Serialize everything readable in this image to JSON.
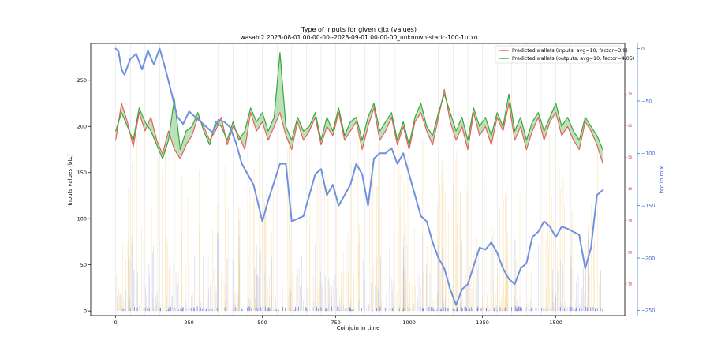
{
  "chart_data": {
    "type": "line",
    "title": "Type of inputs for given cjtx (values)",
    "subtitle": "wasabi2 2023-08-01 00-00-00--2023-09-01 00-00-00_unknown-static-100-1utxo",
    "xlabel": "Coinjoin in time",
    "ylabel": "Inputs values (btc)",
    "ylabel_right_outer": "btc in mix",
    "xlim": [
      -85,
      1735
    ],
    "ylim": [
      -5,
      290
    ],
    "x_ticks": [
      0,
      250,
      500,
      750,
      1000,
      1250,
      1500
    ],
    "y_ticks": [
      0,
      50,
      100,
      150,
      200,
      250
    ],
    "y2lim": [
      0,
      86
    ],
    "y2_ticks": [
      10,
      20,
      30,
      40,
      50,
      60,
      70
    ],
    "y3lim": [
      -255,
      5
    ],
    "y3_ticks": [
      0,
      -50,
      -100,
      -150,
      -200,
      -250
    ],
    "legend_placement": "top-right",
    "grid": "vertical lines only",
    "colors": {
      "inputs_line": "#e8605a",
      "outputs_line": "#3aa53a",
      "fill": "#78c878",
      "btc_in_mix": "#7090e0",
      "bars_orange": "#f5c86a",
      "bars_blue": "#a8b4f0",
      "right_axis_red": "#d04040",
      "right_axis_blue": "#3060d0"
    },
    "series": [
      {
        "name": "Predicted wallets (inputs, avg=10, factor=3.9)",
        "axis": "left",
        "x": [
          0,
          20,
          40,
          60,
          80,
          100,
          120,
          140,
          160,
          180,
          200,
          220,
          240,
          260,
          280,
          300,
          320,
          340,
          360,
          380,
          400,
          420,
          440,
          460,
          480,
          500,
          520,
          540,
          560,
          580,
          600,
          620,
          640,
          660,
          680,
          700,
          720,
          740,
          760,
          780,
          800,
          820,
          840,
          860,
          880,
          900,
          920,
          940,
          960,
          980,
          1000,
          1020,
          1040,
          1060,
          1080,
          1100,
          1120,
          1140,
          1160,
          1180,
          1200,
          1220,
          1240,
          1260,
          1280,
          1300,
          1320,
          1340,
          1360,
          1380,
          1400,
          1420,
          1440,
          1460,
          1480,
          1500,
          1520,
          1540,
          1560,
          1580,
          1600,
          1620,
          1640,
          1660
        ],
        "y": [
          185,
          225,
          205,
          178,
          215,
          195,
          210,
          185,
          170,
          195,
          175,
          165,
          180,
          190,
          210,
          200,
          185,
          195,
          210,
          180,
          200,
          190,
          175,
          215,
          195,
          205,
          185,
          200,
          215,
          190,
          175,
          205,
          185,
          195,
          210,
          180,
          200,
          190,
          215,
          185,
          195,
          205,
          175,
          200,
          220,
          185,
          195,
          210,
          180,
          200,
          175,
          205,
          215,
          195,
          180,
          210,
          240,
          205,
          185,
          200,
          175,
          215,
          190,
          200,
          180,
          210,
          195,
          225,
          185,
          200,
          175,
          195,
          210,
          185,
          205,
          215,
          190,
          200,
          185,
          175,
          205,
          195,
          180,
          160
        ]
      },
      {
        "name": "Predicted wallets (outputs, avg=10, factor=4.05)",
        "axis": "left",
        "x": [
          0,
          20,
          40,
          60,
          80,
          100,
          120,
          140,
          160,
          180,
          200,
          220,
          240,
          260,
          280,
          300,
          320,
          340,
          360,
          380,
          400,
          420,
          440,
          460,
          480,
          500,
          520,
          540,
          560,
          580,
          600,
          620,
          640,
          660,
          680,
          700,
          720,
          740,
          760,
          780,
          800,
          820,
          840,
          860,
          880,
          900,
          920,
          940,
          960,
          980,
          1000,
          1020,
          1040,
          1060,
          1080,
          1100,
          1120,
          1140,
          1160,
          1180,
          1200,
          1220,
          1240,
          1260,
          1280,
          1300,
          1320,
          1340,
          1360,
          1380,
          1400,
          1420,
          1440,
          1460,
          1480,
          1500,
          1520,
          1540,
          1560,
          1580,
          1600,
          1620,
          1640,
          1660
        ],
        "y": [
          195,
          215,
          200,
          185,
          220,
          205,
          195,
          180,
          165,
          185,
          230,
          175,
          195,
          200,
          215,
          195,
          180,
          205,
          200,
          185,
          205,
          185,
          195,
          220,
          205,
          215,
          195,
          210,
          280,
          200,
          185,
          210,
          195,
          200,
          215,
          185,
          210,
          195,
          220,
          190,
          205,
          210,
          185,
          210,
          225,
          195,
          205,
          215,
          185,
          205,
          180,
          210,
          225,
          200,
          190,
          215,
          235,
          215,
          195,
          210,
          185,
          220,
          200,
          210,
          190,
          215,
          200,
          235,
          195,
          210,
          185,
          205,
          215,
          195,
          210,
          225,
          200,
          210,
          195,
          185,
          210,
          200,
          190,
          175
        ]
      },
      {
        "name": "btc in mix",
        "axis": "right_outer",
        "x": [
          0,
          10,
          20,
          30,
          50,
          70,
          90,
          110,
          130,
          150,
          170,
          190,
          210,
          230,
          250,
          270,
          290,
          310,
          330,
          350,
          370,
          390,
          410,
          430,
          450,
          470,
          500,
          520,
          560,
          580,
          600,
          640,
          660,
          680,
          700,
          720,
          740,
          760,
          780,
          800,
          820,
          840,
          860,
          880,
          900,
          920,
          940,
          960,
          980,
          1000,
          1020,
          1040,
          1060,
          1080,
          1100,
          1120,
          1140,
          1160,
          1180,
          1200,
          1240,
          1260,
          1280,
          1300,
          1320,
          1340,
          1360,
          1380,
          1400,
          1420,
          1440,
          1460,
          1480,
          1500,
          1520,
          1540,
          1560,
          1580,
          1600,
          1620,
          1640,
          1660
        ],
        "y": [
          0,
          -3,
          -20,
          -25,
          -10,
          -5,
          -20,
          -2,
          -15,
          0,
          -20,
          -42,
          -65,
          -72,
          -60,
          -65,
          -70,
          -75,
          -80,
          -68,
          -70,
          -75,
          -90,
          -110,
          -120,
          -130,
          -165,
          -145,
          -110,
          -110,
          -165,
          -160,
          -140,
          -120,
          -115,
          -140,
          -130,
          -150,
          -140,
          -130,
          -110,
          -120,
          -150,
          -105,
          -100,
          -100,
          -95,
          -110,
          -100,
          -120,
          -140,
          -160,
          -165,
          -185,
          -200,
          -210,
          -230,
          -245,
          -230,
          -225,
          -190,
          -192,
          -185,
          -195,
          -210,
          -220,
          -225,
          -210,
          -205,
          -180,
          -175,
          -165,
          -170,
          -180,
          -170,
          -172,
          -175,
          -178,
          -210,
          -190,
          -140,
          -135
        ]
      }
    ],
    "background_bars": "dense thin vertical bars of input values (orange and light blue) across all coinjoins"
  }
}
